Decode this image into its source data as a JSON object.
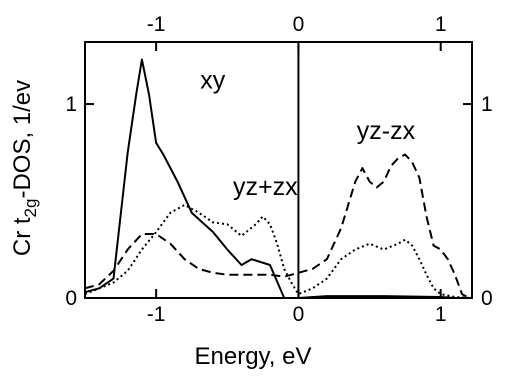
{
  "chart_data": {
    "type": "line",
    "xlabel": "Energy, eV",
    "ylabel_parts": {
      "base": "Cr t",
      "sub": "2g",
      "rest": "-DOS, 1/ev"
    },
    "xlim": [
      -1.5,
      1.22
    ],
    "ylim": [
      0,
      1.32
    ],
    "xticks_bottom": [
      {
        "v": -1,
        "label": "-1"
      },
      {
        "v": 0,
        "label": "0"
      },
      {
        "v": 1,
        "label": "1"
      }
    ],
    "xticks_top": [
      {
        "v": -1,
        "label": "-1"
      },
      {
        "v": 0,
        "label": "0"
      },
      {
        "v": 1,
        "label": "1"
      }
    ],
    "yticks_left": [
      {
        "v": 0,
        "label": "0"
      },
      {
        "v": 1,
        "label": "1"
      }
    ],
    "yticks_right": [
      {
        "v": 0,
        "label": "0"
      },
      {
        "v": 1,
        "label": "1"
      }
    ],
    "fermi_level_x": 0,
    "annotations": [
      {
        "text": "xy",
        "x": -0.69,
        "y": 1.08
      },
      {
        "text": "yz+zx",
        "x": -0.46,
        "y": 0.53
      },
      {
        "text": "yz-zx",
        "x": 0.41,
        "y": 0.82
      }
    ],
    "series": [
      {
        "name": "xy",
        "style": "solid",
        "x": [
          -1.5,
          -1.4,
          -1.3,
          -1.2,
          -1.14,
          -1.1,
          -1.05,
          -1.0,
          -0.95,
          -0.85,
          -0.75,
          -0.6,
          -0.5,
          -0.4,
          -0.33,
          -0.2,
          -0.1,
          -0.05,
          0.0,
          0.2,
          0.6,
          1.0,
          1.1,
          1.22
        ],
        "y": [
          0.03,
          0.05,
          0.1,
          0.75,
          1.05,
          1.23,
          1.05,
          0.8,
          0.74,
          0.6,
          0.44,
          0.34,
          0.25,
          0.17,
          0.2,
          0.17,
          0.0,
          0.0,
          0.0,
          0.01,
          0.01,
          0.005,
          0.0,
          0.0
        ]
      },
      {
        "name": "yz+zx",
        "style": "dotted",
        "x": [
          -1.5,
          -1.4,
          -1.3,
          -1.2,
          -1.1,
          -1.0,
          -0.9,
          -0.8,
          -0.7,
          -0.6,
          -0.5,
          -0.4,
          -0.3,
          -0.25,
          -0.2,
          -0.15,
          -0.1,
          -0.05,
          0.0,
          0.1,
          0.2,
          0.3,
          0.4,
          0.5,
          0.6,
          0.7,
          0.75,
          0.8,
          0.85,
          0.9,
          0.95,
          1.0,
          1.1,
          1.22
        ],
        "y": [
          0.02,
          0.05,
          0.08,
          0.14,
          0.25,
          0.34,
          0.44,
          0.48,
          0.44,
          0.39,
          0.38,
          0.32,
          0.38,
          0.42,
          0.38,
          0.28,
          0.15,
          0.08,
          0.02,
          0.05,
          0.1,
          0.2,
          0.25,
          0.28,
          0.25,
          0.28,
          0.3,
          0.27,
          0.2,
          0.12,
          0.05,
          0.02,
          0.005,
          0.0
        ]
      },
      {
        "name": "yz-zx",
        "style": "dashed",
        "x": [
          -1.5,
          -1.4,
          -1.3,
          -1.2,
          -1.1,
          -1.0,
          -0.9,
          -0.8,
          -0.7,
          -0.6,
          -0.5,
          -0.4,
          -0.3,
          -0.2,
          -0.1,
          0.0,
          0.1,
          0.2,
          0.3,
          0.4,
          0.45,
          0.5,
          0.55,
          0.6,
          0.65,
          0.7,
          0.75,
          0.8,
          0.85,
          0.9,
          0.95,
          1.0,
          1.05,
          1.1,
          1.15,
          1.2
        ],
        "y": [
          0.05,
          0.07,
          0.14,
          0.25,
          0.33,
          0.33,
          0.28,
          0.2,
          0.15,
          0.13,
          0.12,
          0.12,
          0.12,
          0.12,
          0.11,
          0.13,
          0.15,
          0.2,
          0.36,
          0.6,
          0.67,
          0.6,
          0.57,
          0.6,
          0.68,
          0.72,
          0.74,
          0.7,
          0.62,
          0.42,
          0.27,
          0.25,
          0.2,
          0.12,
          0.02,
          0.0
        ]
      }
    ]
  }
}
